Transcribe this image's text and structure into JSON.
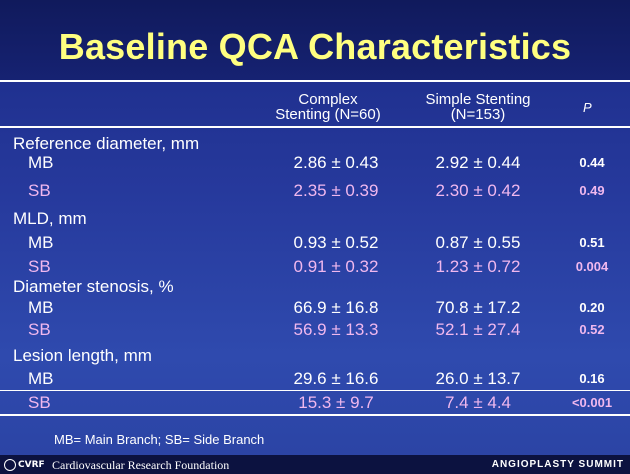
{
  "title": "Baseline QCA Characteristics",
  "columns": {
    "complex_line1": "Complex",
    "complex_line2": "Stenting  (N=60)",
    "simple_line1": "Simple Stenting",
    "simple_line2": "(N=153)",
    "p": "P"
  },
  "sections": [
    {
      "label": "Reference diameter, mm",
      "rows": [
        {
          "label": "MB",
          "complex": "2.86 ± 0.43",
          "simple": "2.92 ± 0.44",
          "p": "0.44"
        },
        {
          "label": "SB",
          "complex": "2.35 ± 0.39",
          "simple": "2.30 ± 0.42",
          "p": "0.49"
        }
      ]
    },
    {
      "label": "MLD, mm",
      "rows": [
        {
          "label": "MB",
          "complex": "0.93 ± 0.52",
          "simple": "0.87 ± 0.55",
          "p": "0.51"
        },
        {
          "label": "SB",
          "complex": "0.91 ± 0.32",
          "simple": "1.23 ± 0.72",
          "p": "0.004"
        }
      ]
    },
    {
      "label": "Diameter stenosis, %",
      "rows": [
        {
          "label": "MB",
          "complex": "66.9 ± 16.8",
          "simple": "70.8 ± 17.2",
          "p": "0.20"
        },
        {
          "label": "SB",
          "complex": "56.9 ± 13.3",
          "simple": "52.1 ± 27.4",
          "p": "0.52"
        }
      ]
    },
    {
      "label": "Lesion length, mm",
      "rows": [
        {
          "label": "MB",
          "complex": "29.6 ± 16.6",
          "simple": "26.0 ± 13.7",
          "p": "0.16"
        },
        {
          "label": "SB",
          "complex": "15.3 ± 9.7",
          "simple": "7.4 ± 4.4",
          "p": "<0.001"
        }
      ]
    }
  ],
  "footnote": "MB= Main Branch; SB= Side Branch",
  "footer": {
    "logo_text": "CVRF",
    "organization": "Cardiovascular Research Foundation",
    "event": "ANGIOPLASTY SUMMIT"
  },
  "colors": {
    "title": "#ffff80",
    "sb_text": "#f0b8ee",
    "background": "#26399c"
  }
}
